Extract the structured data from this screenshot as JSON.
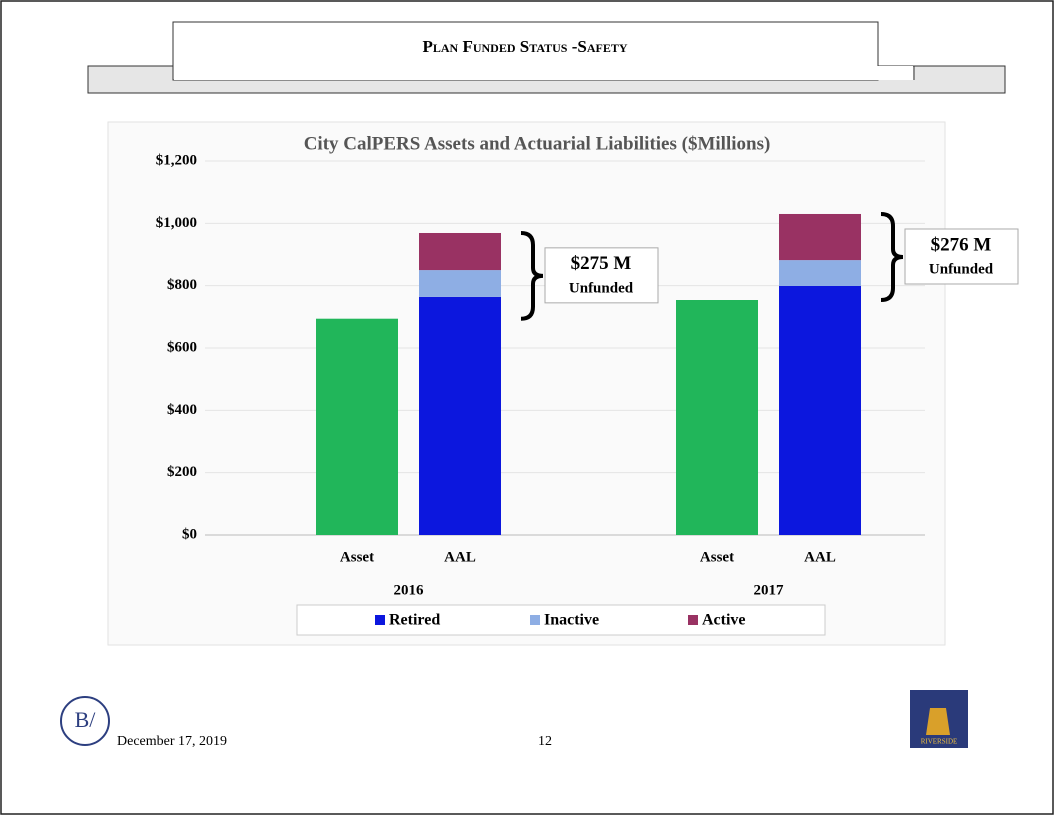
{
  "header": {
    "title": "Plan Funded Status -Safety"
  },
  "chart_data": {
    "type": "grouped-stacked-bar",
    "title": "City CalPERS Assets and Actuarial Liabilities ($Millions)",
    "ylim": [
      0,
      1200
    ],
    "yticks": [
      {
        "value": 0,
        "label": "$0"
      },
      {
        "value": 200,
        "label": "$200"
      },
      {
        "value": 400,
        "label": "$400"
      },
      {
        "value": 600,
        "label": "$600"
      },
      {
        "value": 800,
        "label": "$800"
      },
      {
        "value": 1000,
        "label": "$1,000"
      },
      {
        "value": 1200,
        "label": "$1,200"
      }
    ],
    "grid": true,
    "asset_color": "#21b65a",
    "series": [
      {
        "name": "Retired",
        "color": "#0c17de"
      },
      {
        "name": "Inactive",
        "color": "#8eaee4"
      },
      {
        "name": "Active",
        "color": "#993263"
      }
    ],
    "groups": [
      {
        "label": "2016",
        "asset_label": "Asset",
        "asset": 694,
        "aal_label": "AAL",
        "aal": [
          764,
          86,
          119
        ],
        "annotation": "$275 M",
        "annotation_sub": "Unfunded"
      },
      {
        "label": "2017",
        "asset_label": "Asset",
        "asset": 754,
        "aal_label": "AAL",
        "aal": [
          799,
          83,
          148
        ],
        "annotation": "$276 M",
        "annotation_sub": "Unfunded"
      }
    ],
    "legend": "bottom"
  },
  "footer": {
    "date": "December 17, 2019",
    "page": "12",
    "logo_text": "RIVERSIDE"
  }
}
